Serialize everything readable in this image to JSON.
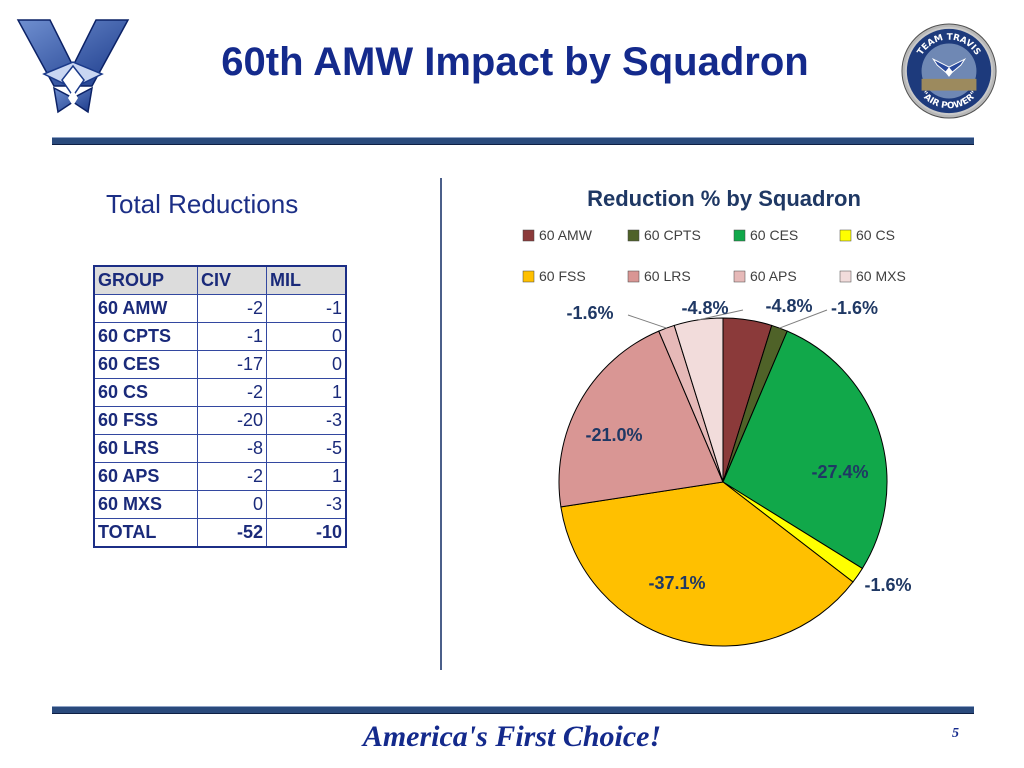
{
  "header": {
    "title": "60th AMW Impact by Squadron",
    "seal_top_text": "TEAM TRAVIS",
    "seal_bottom_text": "\"AIR POWER\""
  },
  "left": {
    "subhead": "Total Reductions",
    "table": {
      "headers": [
        "GROUP",
        "CIV",
        "MIL"
      ],
      "rows": [
        {
          "group": "60 AMW",
          "civ": "-2",
          "mil": "-1"
        },
        {
          "group": "60 CPTS",
          "civ": "-1",
          "mil": "0"
        },
        {
          "group": "60 CES",
          "civ": "-17",
          "mil": "0"
        },
        {
          "group": "60 CS",
          "civ": "-2",
          "mil": "1"
        },
        {
          "group": "60 FSS",
          "civ": "-20",
          "mil": "-3"
        },
        {
          "group": "60 LRS",
          "civ": "-8",
          "mil": "-5"
        },
        {
          "group": "60 APS",
          "civ": "-2",
          "mil": "1"
        },
        {
          "group": "60 MXS",
          "civ": "0",
          "mil": "-3"
        }
      ],
      "total": {
        "group": "TOTAL",
        "civ": "-52",
        "mil": "-10"
      }
    }
  },
  "chart_data": {
    "type": "pie",
    "title": "Reduction % by Squadron",
    "legend_position": "top",
    "categories": [
      "60 AMW",
      "60 CPTS",
      "60 CES",
      "60 CS",
      "60 FSS",
      "60 LRS",
      "60 APS",
      "60 MXS"
    ],
    "values": [
      -4.8,
      -1.6,
      -27.4,
      -1.6,
      -37.1,
      -21.0,
      -1.6,
      -4.8
    ],
    "labels": [
      "-4.8%",
      "-1.6%",
      "-27.4%",
      "-1.6%",
      "-37.1%",
      "-21.0%",
      "-1.6%",
      "-4.8%"
    ],
    "colors": [
      "#8b3a3a",
      "#4f6228",
      "#11a84a",
      "#ffff00",
      "#ffc000",
      "#d99694",
      "#e6b9b8",
      "#f2dcdb"
    ]
  },
  "footer": {
    "tagline": "America's First Choice!",
    "page_number": "5"
  },
  "colors": {
    "title": "#142a8c",
    "rule": "#2a4a7c",
    "label_text": "#1f3864"
  }
}
